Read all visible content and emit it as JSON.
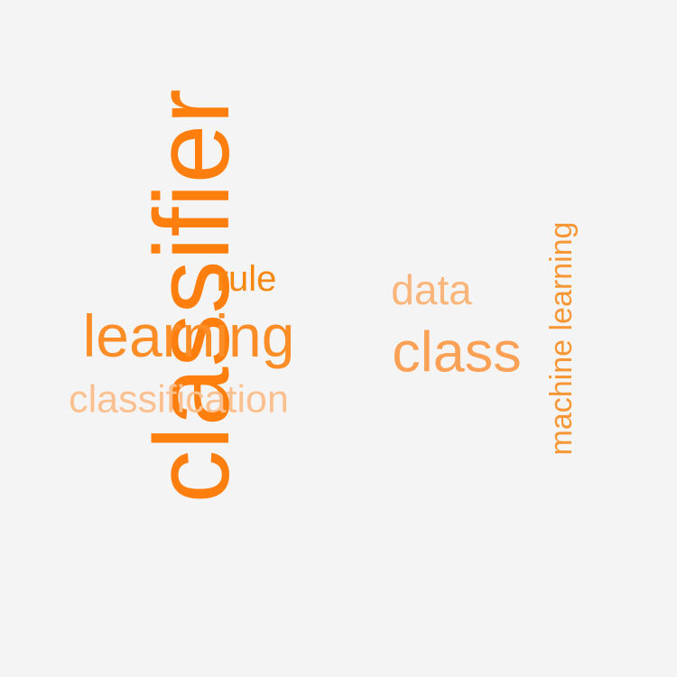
{
  "background_color": "#f4f4f4",
  "words": {
    "classifier": {
      "text": "classifier",
      "color": "#ff7f0e"
    },
    "learning": {
      "text": "learning",
      "color": "#fd8d27"
    },
    "classification": {
      "text": "classification",
      "color": "#fbc08f"
    },
    "rule": {
      "text": "rule",
      "color": "#f6870f"
    },
    "data": {
      "text": "data",
      "color": "#f9b57a"
    },
    "class": {
      "text": "class",
      "color": "#fba156"
    },
    "machine_learning": {
      "text": "machine learning",
      "color": "#f79634"
    }
  }
}
